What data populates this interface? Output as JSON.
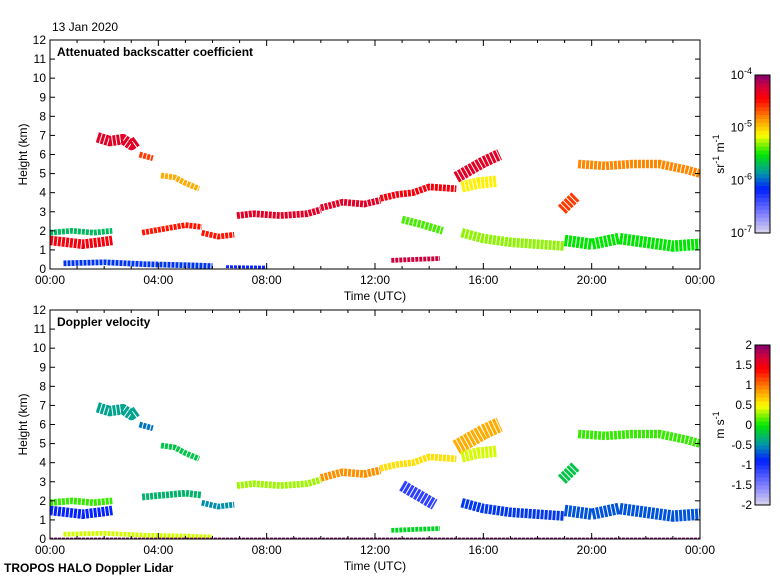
{
  "header": {
    "date": "13 Jan 2020"
  },
  "footer": {
    "label": "TROPOS HALO Doppler Lidar"
  },
  "chart_data": [
    {
      "type": "heatmap",
      "title": "Attenuated backscatter coefficient",
      "xlabel": "Time (UTC)",
      "ylabel": "Height (km)",
      "xlim": [
        0,
        24
      ],
      "ylim": [
        0,
        12
      ],
      "xticks": [
        "00:00",
        "04:00",
        "08:00",
        "12:00",
        "16:00",
        "20:00",
        "00:00"
      ],
      "yticks": [
        "0",
        "1",
        "2",
        "3",
        "4",
        "5",
        "6",
        "7",
        "8",
        "9",
        "10",
        "11",
        "12"
      ],
      "colorbar": {
        "label_base": "sr",
        "label_exp1": "-1",
        "label_unit2": " m",
        "label_exp2": "-1",
        "scale": "log",
        "range": [
          -7,
          -4
        ],
        "ticks": [
          {
            "base": "10",
            "exp": "-4"
          },
          {
            "base": "10",
            "exp": "-5"
          },
          {
            "base": "10",
            "exp": "-6"
          },
          {
            "base": "10",
            "exp": "-7"
          }
        ]
      },
      "features_note": "value = log10 backscatter; t in hours UTC; h in km",
      "features": [
        {
          "t": [
            1.75,
            2.2,
            2.7,
            3.0,
            3.2
          ],
          "h": [
            6.9,
            6.7,
            6.8,
            6.5,
            6.7
          ],
          "w": 0.55,
          "v": -4.3
        },
        {
          "t": [
            3.3,
            3.8
          ],
          "h": [
            6.0,
            5.8
          ],
          "w": 0.3,
          "v": -4.6
        },
        {
          "t": [
            4.1,
            4.6,
            5.0,
            5.5
          ],
          "h": [
            4.9,
            4.8,
            4.5,
            4.2
          ],
          "w": 0.3,
          "v": -4.9
        },
        {
          "t": [
            0.0,
            0.6,
            1.2,
            1.8,
            2.3
          ],
          "h": [
            1.5,
            1.4,
            1.3,
            1.4,
            1.5
          ],
          "w": 0.5,
          "v": -4.4
        },
        {
          "t": [
            0.0,
            0.8,
            1.6,
            2.3
          ],
          "h": [
            1.9,
            2.0,
            1.9,
            2.0
          ],
          "w": 0.3,
          "v": -5.7
        },
        {
          "t": [
            3.4,
            4.2,
            5.0,
            5.6
          ],
          "h": [
            1.9,
            2.1,
            2.3,
            2.2
          ],
          "w": 0.3,
          "v": -4.5
        },
        {
          "t": [
            5.6,
            6.2,
            6.8
          ],
          "h": [
            1.9,
            1.7,
            1.8
          ],
          "w": 0.3,
          "v": -4.5
        },
        {
          "t": [
            6.9,
            7.5,
            8.5,
            9.5,
            10.0
          ],
          "h": [
            2.8,
            2.9,
            2.8,
            2.9,
            3.1
          ],
          "w": 0.35,
          "v": -4.3
        },
        {
          "t": [
            10.0,
            10.8,
            11.6,
            12.2
          ],
          "h": [
            3.2,
            3.5,
            3.4,
            3.6
          ],
          "w": 0.35,
          "v": -4.3
        },
        {
          "t": [
            12.2,
            12.8,
            13.4,
            14.0,
            15.0
          ],
          "h": [
            3.7,
            3.9,
            4.0,
            4.3,
            4.2
          ],
          "w": 0.35,
          "v": -4.4
        },
        {
          "t": [
            15.0,
            15.5,
            16.0,
            16.6
          ],
          "h": [
            4.8,
            5.2,
            5.6,
            6.0
          ],
          "w": 0.6,
          "v": -4.3
        },
        {
          "t": [
            15.2,
            15.8,
            16.5
          ],
          "h": [
            4.3,
            4.5,
            4.6
          ],
          "w": 0.6,
          "v": -5.1
        },
        {
          "t": [
            18.9,
            19.4
          ],
          "h": [
            3.1,
            3.8
          ],
          "w": 0.6,
          "v": -4.6
        },
        {
          "t": [
            19.5,
            20.5,
            21.5,
            22.5,
            23.5,
            24.0
          ],
          "h": [
            5.5,
            5.4,
            5.5,
            5.5,
            5.2,
            5.0
          ],
          "w": 0.45,
          "v": -4.8
        },
        {
          "t": [
            12.6,
            13.4,
            14.4
          ],
          "h": [
            0.45,
            0.5,
            0.55
          ],
          "w": 0.25,
          "v": -4.2
        },
        {
          "t": [
            15.2,
            16.0,
            17.0,
            18.0,
            19.0
          ],
          "h": [
            1.9,
            1.6,
            1.4,
            1.3,
            1.2
          ],
          "w": 0.5,
          "v": -5.3
        },
        {
          "t": [
            19.0,
            20.0,
            21.0,
            22.0,
            23.0,
            24.0
          ],
          "h": [
            1.5,
            1.3,
            1.6,
            1.4,
            1.2,
            1.3
          ],
          "w": 0.6,
          "v": -5.5
        },
        {
          "t": [
            13.0,
            13.8,
            14.5
          ],
          "h": [
            2.6,
            2.3,
            2.0
          ],
          "w": 0.4,
          "v": -5.4
        },
        {
          "t": [
            0.5,
            2.0,
            3.5,
            5.0,
            6.0
          ],
          "h": [
            0.3,
            0.35,
            0.25,
            0.2,
            0.15
          ],
          "w": 0.3,
          "v": -6.1
        },
        {
          "t": [
            6.5,
            8.0
          ],
          "h": [
            0.12,
            0.1
          ],
          "w": 0.15,
          "v": -6.2
        }
      ]
    },
    {
      "type": "heatmap",
      "title": "Doppler velocity",
      "xlabel": "Time (UTC)",
      "ylabel": "Height (km)",
      "xlim": [
        0,
        24
      ],
      "ylim": [
        0,
        12
      ],
      "xticks": [
        "00:00",
        "04:00",
        "08:00",
        "12:00",
        "16:00",
        "20:00",
        "00:00"
      ],
      "yticks": [
        "0",
        "1",
        "2",
        "3",
        "4",
        "5",
        "6",
        "7",
        "8",
        "9",
        "10",
        "11",
        "12"
      ],
      "colorbar": {
        "label_base": "m s",
        "label_exp1": "-1",
        "scale": "linear",
        "range": [
          -2,
          2
        ],
        "ticks": [
          "2",
          "1.5",
          "1",
          "0.5",
          "0",
          "-0.5",
          "-1",
          "-1.5",
          "-2"
        ]
      },
      "features_note": "value = velocity m/s; t in hours UTC; h in km",
      "features": [
        {
          "t": [
            1.75,
            2.2,
            2.7,
            3.0,
            3.2
          ],
          "h": [
            6.9,
            6.7,
            6.8,
            6.5,
            6.7
          ],
          "w": 0.55,
          "v": -0.4
        },
        {
          "t": [
            3.3,
            3.8
          ],
          "h": [
            6.0,
            5.8
          ],
          "w": 0.3,
          "v": -0.6
        },
        {
          "t": [
            4.1,
            4.6,
            5.0,
            5.5
          ],
          "h": [
            4.9,
            4.8,
            4.5,
            4.2
          ],
          "w": 0.3,
          "v": -0.2
        },
        {
          "t": [
            0.0,
            0.6,
            1.2,
            1.8,
            2.3
          ],
          "h": [
            1.5,
            1.4,
            1.3,
            1.4,
            1.5
          ],
          "w": 0.5,
          "v": -0.9
        },
        {
          "t": [
            0.0,
            0.8,
            1.6,
            2.3
          ],
          "h": [
            1.9,
            2.0,
            1.9,
            2.0
          ],
          "w": 0.35,
          "v": 0.1
        },
        {
          "t": [
            3.4,
            4.2,
            5.0,
            5.6
          ],
          "h": [
            2.2,
            2.3,
            2.4,
            2.3
          ],
          "w": 0.35,
          "v": -0.3
        },
        {
          "t": [
            5.6,
            6.2,
            6.8
          ],
          "h": [
            1.9,
            1.7,
            1.8
          ],
          "w": 0.3,
          "v": -0.5
        },
        {
          "t": [
            6.9,
            7.5,
            8.5,
            9.5,
            10.0
          ],
          "h": [
            2.8,
            2.9,
            2.8,
            2.9,
            3.1
          ],
          "w": 0.35,
          "v": 0.3
        },
        {
          "t": [
            10.0,
            10.8,
            11.6,
            12.2
          ],
          "h": [
            3.2,
            3.5,
            3.4,
            3.6
          ],
          "w": 0.4,
          "v": 0.9
        },
        {
          "t": [
            12.2,
            12.8,
            13.4,
            14.0,
            15.0
          ],
          "h": [
            3.7,
            3.9,
            4.0,
            4.3,
            4.2
          ],
          "w": 0.35,
          "v": 0.6
        },
        {
          "t": [
            15.0,
            15.5,
            16.0,
            16.6
          ],
          "h": [
            4.8,
            5.2,
            5.6,
            6.0
          ],
          "w": 0.8,
          "v": 0.8
        },
        {
          "t": [
            15.2,
            15.8,
            16.5
          ],
          "h": [
            4.3,
            4.5,
            4.6
          ],
          "w": 0.6,
          "v": 0.4
        },
        {
          "t": [
            18.9,
            19.4
          ],
          "h": [
            3.1,
            3.8
          ],
          "w": 0.6,
          "v": -0.2
        },
        {
          "t": [
            19.5,
            20.5,
            21.5,
            22.5,
            23.5,
            24.0
          ],
          "h": [
            5.5,
            5.4,
            5.5,
            5.5,
            5.2,
            5.0
          ],
          "w": 0.45,
          "v": 0.1
        },
        {
          "t": [
            12.6,
            13.4,
            14.4
          ],
          "h": [
            0.45,
            0.5,
            0.55
          ],
          "w": 0.25,
          "v": -0.1
        },
        {
          "t": [
            13.0,
            13.6,
            14.2
          ],
          "h": [
            2.8,
            2.3,
            1.8
          ],
          "w": 0.6,
          "v": -1.1
        },
        {
          "t": [
            15.2,
            16.0,
            17.0,
            18.0,
            19.0
          ],
          "h": [
            1.9,
            1.6,
            1.4,
            1.3,
            1.2
          ],
          "w": 0.5,
          "v": -0.8
        },
        {
          "t": [
            19.0,
            20.0,
            21.0,
            22.0,
            23.0,
            24.0
          ],
          "h": [
            1.5,
            1.3,
            1.6,
            1.4,
            1.2,
            1.3
          ],
          "w": 0.6,
          "v": -0.7
        },
        {
          "t": [
            0.5,
            2.0,
            3.5,
            5.0,
            6.0
          ],
          "h": [
            0.25,
            0.3,
            0.2,
            0.15,
            0.1
          ],
          "w": 0.25,
          "v": 0.4
        },
        {
          "t": [
            0.0,
            24.0
          ],
          "h": [
            0.02,
            0.02
          ],
          "w": 0.05,
          "v": 2.0
        }
      ]
    }
  ]
}
